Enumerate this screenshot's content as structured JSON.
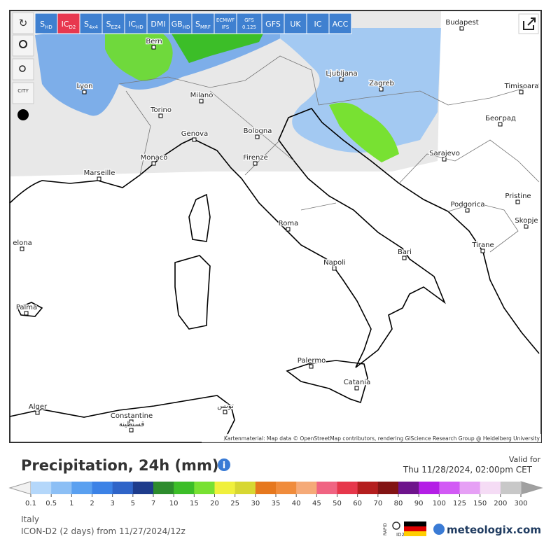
{
  "toolbar": {
    "buttons": [
      {
        "main": "S",
        "sub": "HD"
      },
      {
        "main": "IC",
        "sub": "D2"
      },
      {
        "main": "S",
        "sub": "4x4"
      },
      {
        "main": "S",
        "sub": "EZ4"
      },
      {
        "main": "IC",
        "sub": "HD"
      },
      {
        "main": "DMI"
      },
      {
        "main": "GB",
        "sub": "HD"
      },
      {
        "main": "S",
        "sub": "MRF"
      },
      {
        "main": "ECMWF",
        "sub": "IFS"
      },
      {
        "main": "GFS",
        "sub": "0.125"
      },
      {
        "main": "GFS"
      },
      {
        "main": "UK"
      },
      {
        "main": "IC"
      },
      {
        "main": "ACC"
      }
    ],
    "active": 1,
    "city_label": "CITY"
  },
  "map": {
    "cities": [
      "Bern",
      "Budapest",
      "Lyon",
      "Ljubljana",
      "Zagreb",
      "Milano",
      "Timisoara",
      "Torino",
      "Београд",
      "Genova",
      "Bologna",
      "Monaco",
      "Firenze",
      "Sarajevo",
      "Marseille",
      "Pristine",
      "Podgorica",
      "Skopje",
      "Roma",
      "Tirane",
      "elona",
      "Bari",
      "Napoli",
      "Palma",
      "Palermo",
      "Catania",
      "Alger",
      "Constantine",
      "قسنطينة",
      "تونس"
    ],
    "attribution": "Kartenmaterial: Map data © OpenStreetMap contributors, rendering GIScience Research Group @ Heidelberg University"
  },
  "header": {
    "title": "Precipitation, 24h (mm)",
    "valid_label": "Valid for",
    "valid_time": "Thu 11/28/2024, 02:00pm CET"
  },
  "legend": {
    "labels": [
      "0.1",
      "0.5",
      "1",
      "2",
      "3",
      "5",
      "7",
      "10",
      "15",
      "20",
      "25",
      "30",
      "35",
      "40",
      "45",
      "50",
      "60",
      "70",
      "80",
      "90",
      "100",
      "125",
      "150",
      "200",
      "300"
    ],
    "colors": [
      "#b4d7fa",
      "#8cbff5",
      "#5aa0f0",
      "#3c82e6",
      "#2f64c8",
      "#1e3c8c",
      "#2d8c2d",
      "#3cbe28",
      "#78e132",
      "#f0f03c",
      "#d7d732",
      "#e6781e",
      "#f08c3c",
      "#f5aa78",
      "#f06482",
      "#e6374b",
      "#b41e1e",
      "#821414",
      "#6e148c",
      "#b41ee6",
      "#d25af5",
      "#e6a0f5",
      "#f5dcf5",
      "#c8c8c8"
    ],
    "low_color": "#f2f2f2",
    "high_color": "#a0a0a0"
  },
  "footer": {
    "region": "Italy",
    "model": "ICON-D2 (2 days) from 11/27/2024/12z",
    "rapid": "RAPID",
    "rapid_sub": "ID2",
    "brand": "meteologix.com"
  }
}
